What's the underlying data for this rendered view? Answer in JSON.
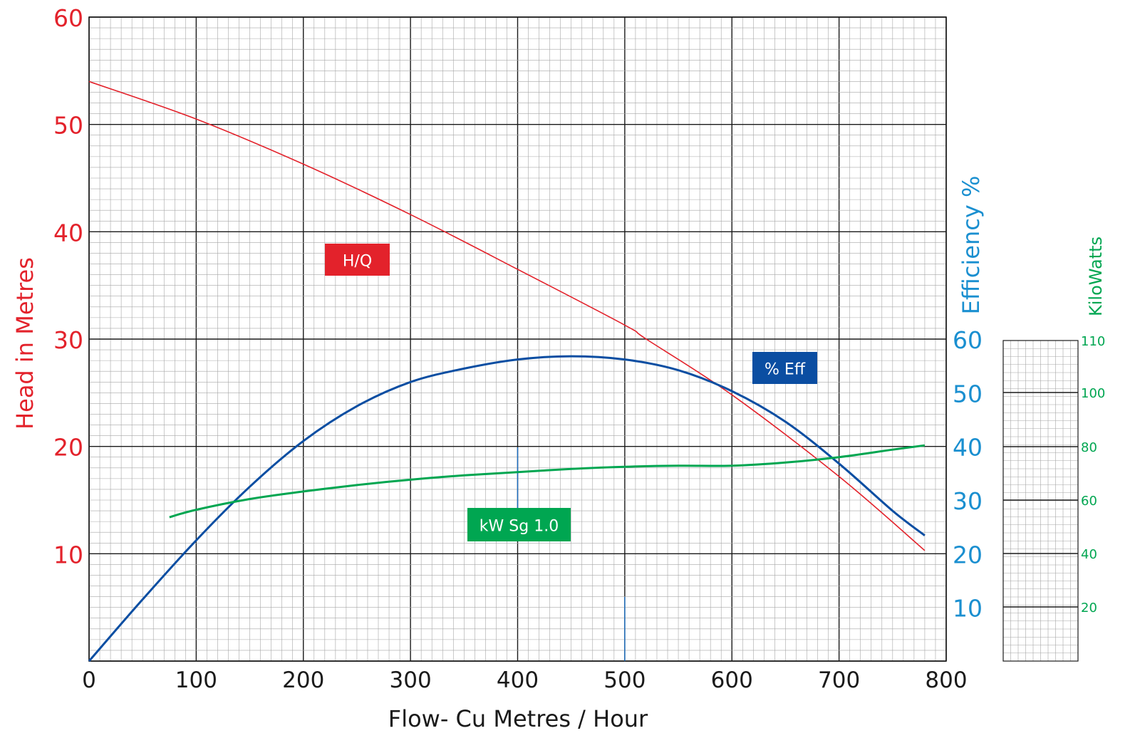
{
  "chart_data": {
    "type": "line",
    "xlabel": "Flow- Cu Metres / Hour",
    "xlim": [
      0,
      800
    ],
    "x_ticks": [
      "0",
      "100",
      "200",
      "300",
      "400",
      "500",
      "600",
      "700",
      "800"
    ],
    "left_axis": {
      "label": "Head in Metres",
      "ylim": [
        0,
        60
      ],
      "ticks": [
        "10",
        "20",
        "30",
        "40",
        "50",
        "60"
      ],
      "color": "#e3222b"
    },
    "right_axis": {
      "label": "Efficiency %",
      "ylim": [
        0,
        60
      ],
      "ticks": [
        "10",
        "20",
        "30",
        "40",
        "50",
        "60"
      ],
      "color": "#1a8fd0"
    },
    "power_axis": {
      "label": "KiloWatts",
      "ticks": [
        "20",
        "40",
        "60",
        "80",
        "100",
        "110"
      ],
      "color": "#00a651"
    },
    "grid": true,
    "series": [
      {
        "name": "H/Q",
        "axis": "head",
        "color": "#e3222b",
        "x": [
          0,
          100,
          200,
          300,
          400,
          500,
          520,
          600,
          700,
          780
        ],
        "y": [
          54,
          50.5,
          46.3,
          41.6,
          36.5,
          31.3,
          30,
          24.8,
          17.2,
          10.3
        ]
      },
      {
        "name": "% Eff",
        "axis": "efficiency",
        "color": "#0b4ea2",
        "x": [
          0,
          50,
          100,
          150,
          200,
          250,
          300,
          350,
          400,
          450,
          500,
          550,
          600,
          650,
          700,
          750,
          780
        ],
        "y": [
          0,
          11.5,
          22.5,
          32.5,
          41,
          47.5,
          52,
          54.5,
          56.2,
          56.8,
          56.2,
          54.2,
          50.3,
          44.6,
          36.8,
          28,
          23.4
        ]
      },
      {
        "name": "kW Sg 1.0",
        "axis": "head",
        "color": "#00a651",
        "x": [
          75,
          100,
          150,
          200,
          250,
          300,
          350,
          400,
          450,
          500,
          550,
          600,
          650,
          700,
          750,
          780
        ],
        "y": [
          13.4,
          14.1,
          15.1,
          15.8,
          16.4,
          16.9,
          17.3,
          17.6,
          17.9,
          18.1,
          18.2,
          18.2,
          18.5,
          19,
          19.7,
          20.1
        ]
      }
    ]
  }
}
